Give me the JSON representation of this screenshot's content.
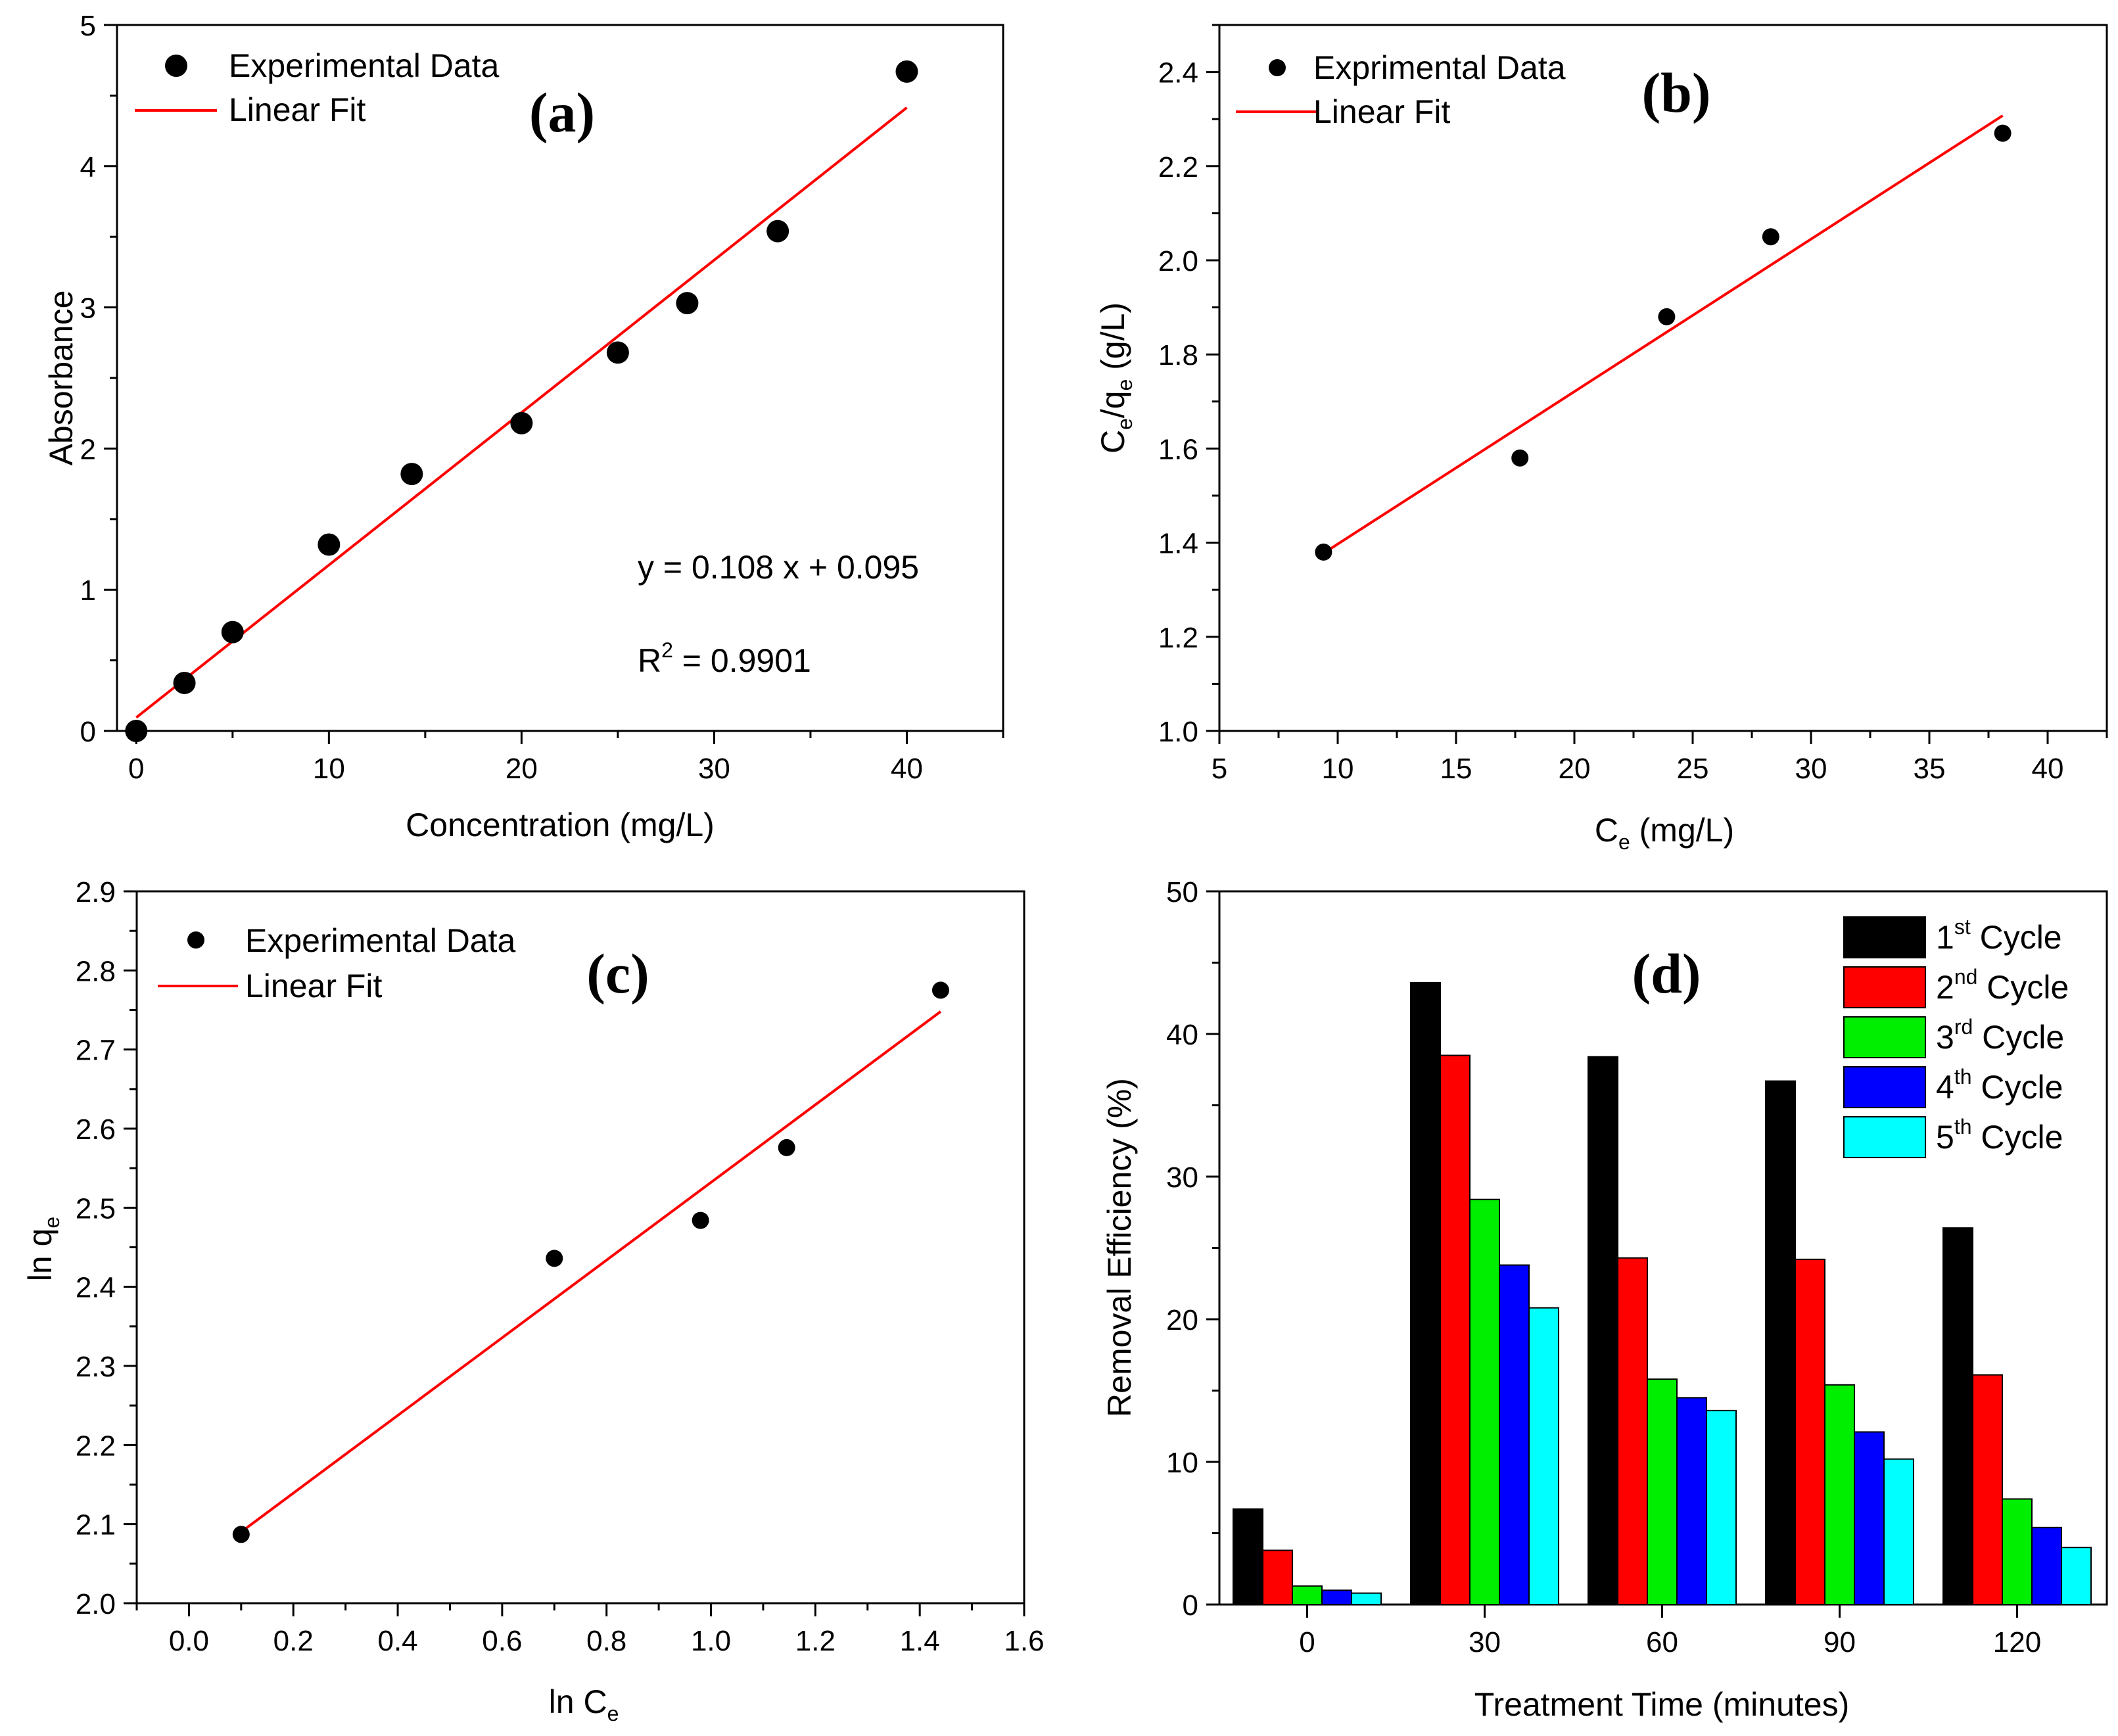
{
  "chart_data": [
    {
      "id": "a",
      "type": "scatter",
      "panel_label": "(a)",
      "xlabel": "Concentration (mg/L)",
      "ylabel": "Absorbance",
      "xlim": [
        -1,
        45
      ],
      "ylim": [
        0,
        5
      ],
      "xticks": [
        0,
        10,
        20,
        30,
        40
      ],
      "yticks": [
        0,
        1,
        2,
        3,
        4,
        5
      ],
      "legend": {
        "position": "top-left",
        "points_label": "Experimental Data",
        "fit_label": "Linear Fit"
      },
      "points": {
        "x": [
          0,
          2.5,
          5,
          10,
          14.3,
          20,
          25,
          28.6,
          33.3,
          40
        ],
        "y": [
          0,
          0.34,
          0.7,
          1.32,
          1.82,
          2.18,
          2.68,
          3.03,
          3.54,
          4.67
        ]
      },
      "fit": {
        "slope": 0.108,
        "intercept": 0.095,
        "x_range": [
          0,
          40
        ]
      },
      "equation_text": "y = 0.108 x + 0.095",
      "r2_text": {
        "prefix": "R",
        "sup": "2",
        "suffix": " = 0.9901"
      },
      "colors": {
        "points": "#000000",
        "fit": "#ff0000"
      }
    },
    {
      "id": "b",
      "type": "scatter",
      "panel_label": "(b)",
      "xlabel": {
        "main": "C",
        "sub": "e",
        "rest": " (mg/L)"
      },
      "ylabel": {
        "p1": "C",
        "s1": "e",
        "p2": "/q",
        "s2": "e",
        "p3": " (g/L)"
      },
      "xlim": [
        5,
        42.5
      ],
      "ylim": [
        1.0,
        2.5
      ],
      "xticks": [
        5,
        10,
        15,
        20,
        25,
        30,
        35,
        40
      ],
      "yticks": [
        1.0,
        1.2,
        1.4,
        1.6,
        1.8,
        2.0,
        2.2,
        2.4
      ],
      "legend": {
        "position": "top-left",
        "points_label": "Exprimental Data",
        "fit_label": "Linear Fit"
      },
      "points": {
        "x": [
          9.4,
          17.7,
          23.9,
          28.3,
          38.1
        ],
        "y": [
          1.38,
          1.58,
          1.88,
          2.05,
          2.27
        ]
      },
      "fit": {
        "slope": 0.0324,
        "intercept": 1.073,
        "x_range": [
          9.4,
          38.1
        ]
      },
      "colors": {
        "points": "#000000",
        "fit": "#ff0000"
      }
    },
    {
      "id": "c",
      "type": "scatter",
      "panel_label": "(c)",
      "xlabel": {
        "main": "ln C",
        "sub": "e"
      },
      "ylabel": {
        "main": "ln q",
        "sub": "e"
      },
      "xlim": [
        -0.1,
        1.6
      ],
      "ylim": [
        2.0,
        2.9
      ],
      "xticks": [
        0.0,
        0.2,
        0.4,
        0.6,
        0.8,
        1.0,
        1.2,
        1.4,
        1.6
      ],
      "yticks": [
        2.0,
        2.1,
        2.2,
        2.3,
        2.4,
        2.5,
        2.6,
        2.7,
        2.8,
        2.9
      ],
      "legend": {
        "position": "top-left",
        "points_label": "Experimental Data",
        "fit_label": "Linear Fit"
      },
      "points": {
        "x": [
          0.1,
          0.7,
          0.98,
          1.145,
          1.44
        ],
        "y": [
          2.087,
          2.436,
          2.484,
          2.576,
          2.775
        ]
      },
      "fit": {
        "slope": 0.491,
        "intercept": 2.041,
        "x_range": [
          0.1,
          1.44
        ]
      },
      "colors": {
        "points": "#000000",
        "fit": "#ff0000"
      }
    },
    {
      "id": "d",
      "type": "bar",
      "panel_label": "(d)",
      "xlabel": "Treatment Time (minutes)",
      "ylabel": "Removal Efficiency (%)",
      "ylim": [
        0,
        50
      ],
      "yticks": [
        0,
        10,
        20,
        30,
        40,
        50
      ],
      "categories": [
        "0",
        "30",
        "60",
        "90",
        "120"
      ],
      "legend_position": "top-right",
      "series": [
        {
          "name": {
            "num": "1",
            "sup": "st",
            "rest": " Cycle"
          },
          "color": "#000000",
          "values": [
            6.7,
            43.6,
            38.4,
            36.7,
            26.4
          ]
        },
        {
          "name": {
            "num": "2",
            "sup": "nd",
            "rest": " Cycle"
          },
          "color": "#ff0000",
          "values": [
            3.8,
            38.5,
            24.3,
            24.2,
            16.1
          ]
        },
        {
          "name": {
            "num": "3",
            "sup": "rd",
            "rest": " Cycle"
          },
          "color": "#00ee00",
          "values": [
            1.3,
            28.4,
            15.8,
            15.4,
            7.4
          ]
        },
        {
          "name": {
            "num": "4",
            "sup": "th",
            "rest": " Cycle"
          },
          "color": "#0000ff",
          "values": [
            1.0,
            23.8,
            14.5,
            12.1,
            5.4
          ]
        },
        {
          "name": {
            "num": "5",
            "sup": "th",
            "rest": " Cycle"
          },
          "color": "#00ffff",
          "values": [
            0.8,
            20.8,
            13.6,
            10.2,
            4.0
          ]
        }
      ]
    }
  ]
}
